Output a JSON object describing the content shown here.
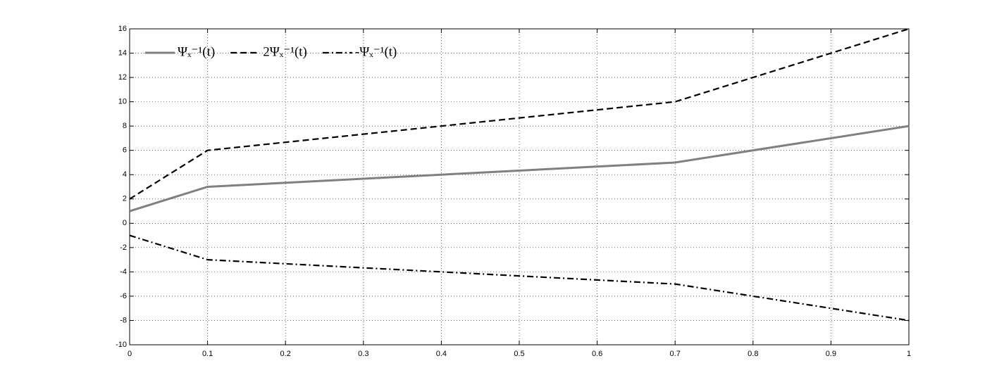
{
  "chart_data": {
    "type": "line",
    "x": [
      0,
      0.1,
      0.7,
      1
    ],
    "series": [
      {
        "name": "Ψₓ⁻¹(t)",
        "color": "#808080",
        "style": "solid",
        "values": [
          1,
          3,
          5,
          8
        ]
      },
      {
        "name": "2Ψₓ⁻¹(t)",
        "color": "#000000",
        "style": "dashed",
        "values": [
          2,
          6,
          10,
          16
        ]
      },
      {
        "name": "-Ψₓ⁻¹(t)",
        "color": "#000000",
        "style": "dashdot",
        "values": [
          -1,
          -3,
          -5,
          -8
        ]
      }
    ],
    "xlim": [
      0,
      1
    ],
    "xticks": [
      0,
      0.1,
      0.2,
      0.3,
      0.4,
      0.5,
      0.6,
      0.7,
      0.8,
      0.9,
      1
    ],
    "ylim": [
      -10,
      16
    ],
    "yticks": [
      -10,
      -8,
      -6,
      -4,
      -2,
      0,
      2,
      4,
      6,
      8,
      10,
      12,
      14,
      16
    ],
    "grid": true,
    "legend": "upper left"
  }
}
